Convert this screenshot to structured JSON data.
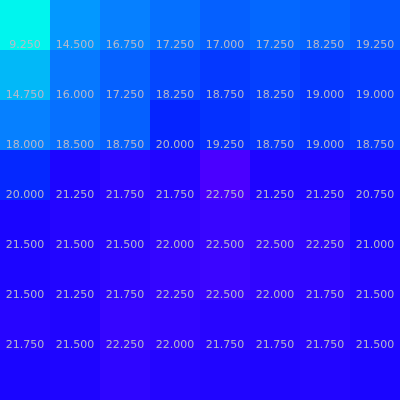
{
  "chart_data": {
    "type": "heatmap",
    "rows": 8,
    "cols": 8,
    "values": [
      [
        9.25,
        14.5,
        16.75,
        17.25,
        17.0,
        17.25,
        18.25,
        19.25
      ],
      [
        14.75,
        16.0,
        17.25,
        18.25,
        18.75,
        18.25,
        19.0,
        19.0
      ],
      [
        18.0,
        18.5,
        18.75,
        20.0,
        19.25,
        18.75,
        19.0,
        18.75
      ],
      [
        20.0,
        21.25,
        21.75,
        21.75,
        22.75,
        21.25,
        21.25,
        20.75
      ],
      [
        21.5,
        21.5,
        21.5,
        22.0,
        22.5,
        22.5,
        22.25,
        21.0
      ],
      [
        21.5,
        21.25,
        21.75,
        22.25,
        22.5,
        22.0,
        21.75,
        21.5
      ],
      [
        21.75,
        21.5,
        22.25,
        22.0,
        21.75,
        21.75,
        21.75,
        21.5
      ],
      [
        null,
        null,
        null,
        null,
        null,
        null,
        null,
        null
      ]
    ],
    "labels": [
      [
        "9.250",
        "14.500",
        "16.750",
        "17.250",
        "17.000",
        "17.250",
        "18.250",
        "19.250"
      ],
      [
        "14.750",
        "16.000",
        "17.250",
        "18.250",
        "18.750",
        "18.250",
        "19.000",
        "19.000"
      ],
      [
        "18.000",
        "18.500",
        "18.750",
        "20.000",
        "19.250",
        "18.750",
        "19.000",
        "18.750"
      ],
      [
        "20.000",
        "21.250",
        "21.750",
        "21.750",
        "22.750",
        "21.250",
        "21.250",
        "20.750"
      ],
      [
        "21.500",
        "21.500",
        "21.500",
        "22.000",
        "22.500",
        "22.500",
        "22.250",
        "21.000"
      ],
      [
        "21.500",
        "21.250",
        "21.750",
        "22.250",
        "22.500",
        "22.000",
        "21.750",
        "21.500"
      ],
      [
        "21.750",
        "21.500",
        "22.250",
        "22.000",
        "21.750",
        "21.750",
        "21.750",
        "21.500"
      ]
    ],
    "colors": [
      [
        "#00f5ee",
        "#0398ff",
        "#0680ff",
        "#0570ff",
        "#0560ff",
        "#0468ff",
        "#0462ff",
        "#0457ff"
      ],
      [
        "#02b8f8",
        "#0678ff",
        "#0560ff",
        "#0447ff",
        "#0438ff",
        "#0440ff",
        "#0435ff",
        "#0438ff"
      ],
      [
        "#0680ff",
        "#0670ff",
        "#0560ff",
        "#0524ff",
        "#0430ff",
        "#0438ff",
        "#0432ff",
        "#0438ff"
      ],
      [
        "#0528ff",
        "#1d05ff",
        "#2a05ff",
        "#2205ff",
        "#4a00ff",
        "#1e05ff",
        "#1e05ff",
        "#1508ff"
      ],
      [
        "#1a05ff",
        "#2505ff",
        "#2505ff",
        "#2f05ff",
        "#3805ff",
        "#3505ff",
        "#3005ff",
        "#1606ff"
      ],
      [
        "#1c05ff",
        "#2205ff",
        "#2c05ff",
        "#3405ff",
        "#3a05ff",
        "#3005ff",
        "#2d05ff",
        "#2205ff"
      ],
      [
        "#2705ff",
        "#2005ff",
        "#3505ff",
        "#3005ff",
        "#2805ff",
        "#2705ff",
        "#2a05ff",
        "#2005ff"
      ],
      [
        "#1a05ff",
        "#1e05ff",
        "#2e05ff",
        "#2305ff",
        "#2005ff",
        "#1e05ff",
        "#2205ff",
        "#1a05ff"
      ]
    ],
    "label_color": "#b9b9c8",
    "grid": false,
    "legend": "none"
  }
}
